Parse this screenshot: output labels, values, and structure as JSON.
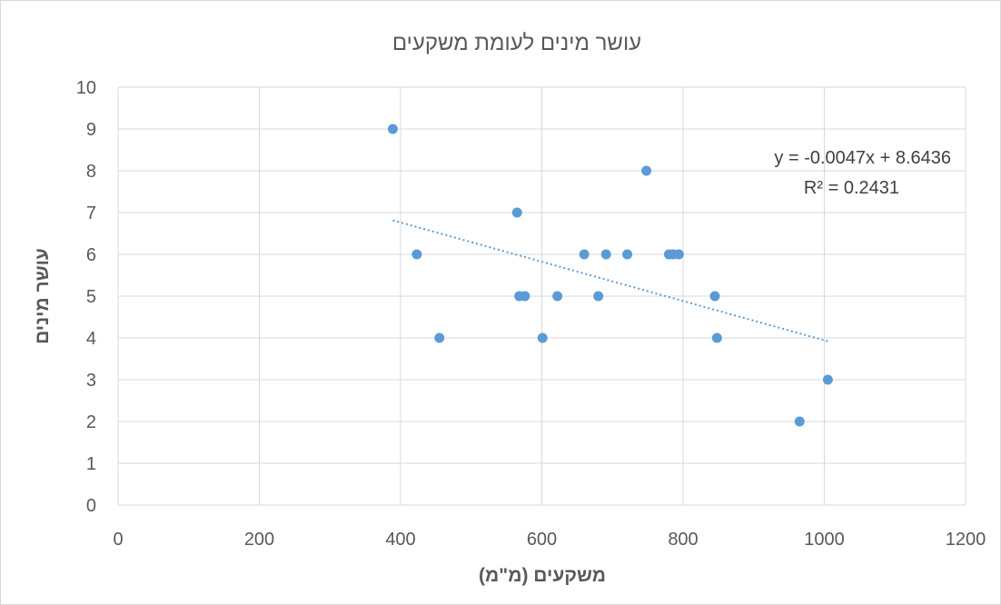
{
  "chart_data": {
    "type": "scatter",
    "title": "עושר מינים לעומת משקעים",
    "xlabel": "משקעים (מ\"מ)",
    "ylabel": "עושר מינים",
    "xlim": [
      0,
      1200
    ],
    "ylim": [
      0,
      10
    ],
    "xticks": [
      0,
      200,
      400,
      600,
      800,
      1000,
      1200
    ],
    "yticks": [
      0,
      1,
      2,
      3,
      4,
      5,
      6,
      7,
      8,
      9,
      10
    ],
    "grid": true,
    "points": [
      {
        "x": 389,
        "y": 9
      },
      {
        "x": 423,
        "y": 6
      },
      {
        "x": 455,
        "y": 4
      },
      {
        "x": 565,
        "y": 7
      },
      {
        "x": 568,
        "y": 5
      },
      {
        "x": 576,
        "y": 5
      },
      {
        "x": 601,
        "y": 4
      },
      {
        "x": 622,
        "y": 5
      },
      {
        "x": 660,
        "y": 6
      },
      {
        "x": 680,
        "y": 5
      },
      {
        "x": 691,
        "y": 6
      },
      {
        "x": 721,
        "y": 6
      },
      {
        "x": 748,
        "y": 8
      },
      {
        "x": 780,
        "y": 6
      },
      {
        "x": 786,
        "y": 6
      },
      {
        "x": 794,
        "y": 6
      },
      {
        "x": 845,
        "y": 5
      },
      {
        "x": 848,
        "y": 4
      },
      {
        "x": 965,
        "y": 2
      },
      {
        "x": 1005,
        "y": 3
      }
    ],
    "trendline": {
      "type": "linear",
      "slope": -0.0047,
      "intercept": 8.6436,
      "x_range": [
        389,
        1005
      ],
      "equation_label": "y = -0.0047x + 8.6436",
      "r2_label": "R² = 0.2431"
    },
    "colors": {
      "points": "#5b9bd5",
      "trendline": "#5b9bd5",
      "grid": "#d9d9d9",
      "text": "#595959"
    }
  }
}
